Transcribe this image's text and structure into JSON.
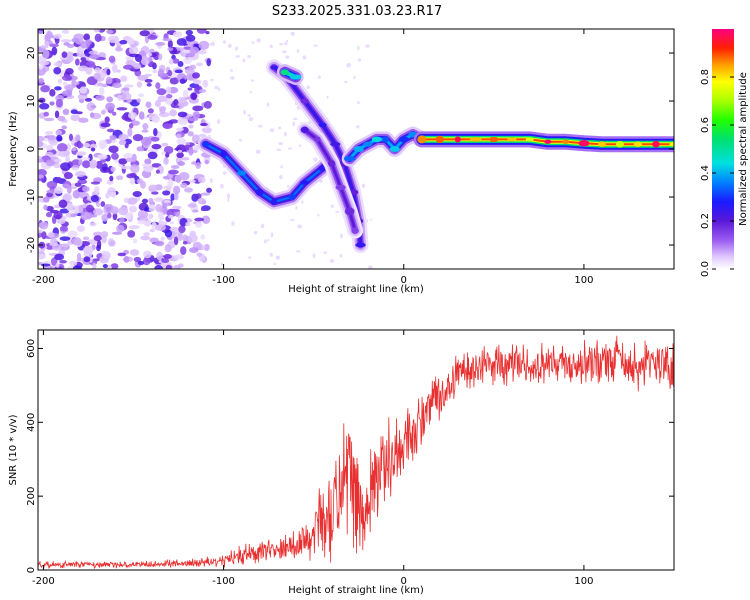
{
  "title": "S233.2025.331.03.23.R17",
  "colors": {
    "snr_line": "#e83030",
    "axis": "#000000",
    "background": "#ffffff"
  },
  "chart_data": [
    {
      "type": "heatmap",
      "name": "spectrogram",
      "xlabel": "Height of straight line (km)",
      "ylabel": "Frequency (Hz)",
      "xlim": [
        -203,
        150
      ],
      "ylim": [
        -25,
        25
      ],
      "x_ticks": [
        -200,
        -100,
        0,
        100
      ],
      "x_tick_labels": [
        "-200",
        "-100",
        "0",
        "100"
      ],
      "y_ticks": [
        -20,
        -10,
        0,
        10,
        20
      ],
      "y_tick_labels": [
        "-20",
        "-10",
        "0",
        "10",
        "20"
      ],
      "colorbar": {
        "label": "Normalized spectral amplitude",
        "range": [
          0,
          1
        ],
        "ticks": [
          0.0,
          0.2,
          0.4,
          0.6,
          0.8
        ],
        "tick_labels": [
          "0.0",
          "0.2",
          "0.4",
          "0.6",
          "0.8"
        ]
      },
      "noise_region": {
        "x": [
          -203,
          -108
        ],
        "freq": [
          -25,
          25
        ],
        "amplitude": 0.15
      },
      "traces": [
        {
          "name": "main-band",
          "points": [
            [
              -110,
              1
            ],
            [
              -100,
              -1
            ],
            [
              -90,
              -5
            ],
            [
              -80,
              -9
            ],
            [
              -72,
              -11
            ],
            [
              -62,
              -10
            ],
            [
              -55,
              -7
            ],
            [
              -45,
              -4
            ],
            [
              -40,
              -2
            ]
          ],
          "amplitude": 0.35
        },
        {
          "name": "upper-arc",
          "points": [
            [
              -72,
              17
            ],
            [
              -65,
              15
            ],
            [
              -55,
              10
            ],
            [
              -45,
              5
            ],
            [
              -38,
              1
            ],
            [
              -33,
              -3
            ],
            [
              -28,
              -9
            ],
            [
              -25,
              -15
            ],
            [
              -24,
              -20
            ]
          ],
          "amplitude": 0.25
        },
        {
          "name": "mid-arc",
          "points": [
            [
              -55,
              4
            ],
            [
              -48,
              2
            ],
            [
              -40,
              -3
            ],
            [
              -35,
              -8
            ],
            [
              -30,
              -13
            ],
            [
              -27,
              -17
            ]
          ],
          "amplitude": 0.2
        },
        {
          "name": "hot-spot",
          "points": [
            [
              -66,
              16
            ],
            [
              -60,
              15
            ]
          ],
          "amplitude": 0.5
        },
        {
          "name": "converging-band",
          "points": [
            [
              -30,
              -2
            ],
            [
              -25,
              0
            ],
            [
              -20,
              1
            ],
            [
              -15,
              2
            ],
            [
              -10,
              2
            ],
            [
              -5,
              0
            ],
            [
              0,
              2
            ],
            [
              5,
              3
            ],
            [
              10,
              2
            ]
          ],
          "amplitude": 0.4
        },
        {
          "name": "steady-band",
          "points": [
            [
              10,
              2
            ],
            [
              20,
              2
            ],
            [
              30,
              2
            ],
            [
              40,
              2
            ],
            [
              50,
              2
            ],
            [
              60,
              2
            ],
            [
              70,
              2
            ],
            [
              80,
              1.5
            ],
            [
              90,
              1.5
            ],
            [
              100,
              1.2
            ],
            [
              110,
              1
            ],
            [
              120,
              1
            ],
            [
              130,
              1
            ],
            [
              140,
              1
            ],
            [
              150,
              1
            ]
          ],
          "amplitude": 0.9
        }
      ]
    },
    {
      "type": "line",
      "name": "snr",
      "xlabel": "Height of straight line (km)",
      "ylabel": "SNR (10 * v/v)",
      "xlim": [
        -203,
        150
      ],
      "ylim": [
        0,
        650
      ],
      "x_ticks": [
        -200,
        -100,
        0,
        100
      ],
      "x_tick_labels": [
        "-200",
        "-100",
        "0",
        "100"
      ],
      "y_ticks": [
        0,
        200,
        400,
        600
      ],
      "y_tick_labels": [
        "0",
        "200",
        "400",
        "600"
      ],
      "series": [
        {
          "name": "SNR",
          "envelope": {
            "x": [
              -203,
              -150,
              -120,
              -100,
              -90,
              -80,
              -70,
              -60,
              -50,
              -40,
              -35,
              -30,
              -25,
              -20,
              -15,
              -10,
              -5,
              0,
              10,
              20,
              30,
              40,
              60,
              80,
              100,
              120,
              150
            ],
            "mean": [
              15,
              15,
              18,
              25,
              40,
              50,
              60,
              70,
              100,
              160,
              220,
              260,
              150,
              200,
              250,
              300,
              320,
              340,
              400,
              480,
              540,
              550,
              560,
              555,
              560,
              560,
              555
            ],
            "noise": [
              8,
              8,
              10,
              15,
              25,
              30,
              30,
              40,
              70,
              120,
              160,
              150,
              130,
              120,
              110,
              100,
              90,
              80,
              70,
              60,
              50,
              50,
              50,
              50,
              55,
              60,
              60
            ]
          }
        }
      ]
    }
  ]
}
